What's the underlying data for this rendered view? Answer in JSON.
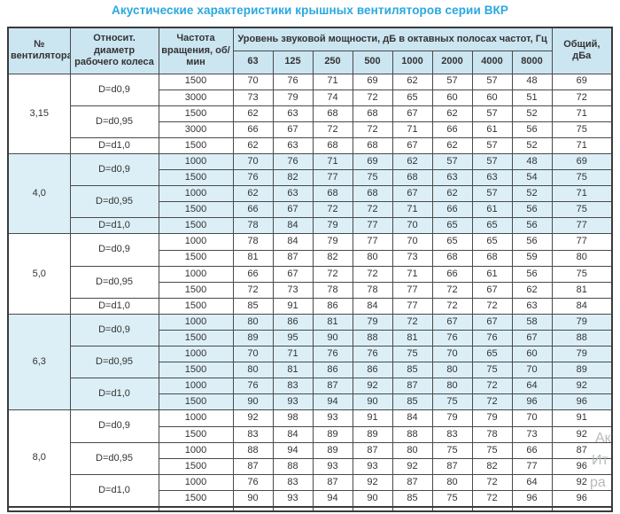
{
  "title": "Акустические характеристики крышных вентиляторов серии ВКР",
  "colors": {
    "title_accent": "#29a8df",
    "header_bg": "#cbe5f1",
    "shaded_group_bg": "#dceff7",
    "border": "#4a4a4a",
    "text": "#333333"
  },
  "watermark": {
    "fragments": [
      "Ак",
      "Ит",
      "ра"
    ]
  },
  "chart_data": {
    "type": "table",
    "title": "Акустические характеристики крышных вентиляторов серии ВКР",
    "header": {
      "fan": "№ вентилятора",
      "diameter": "Относит. диаметр рабочего колеса",
      "rpm": "Частота вращения, об/мин",
      "octave": "Уровень звуковой мощности, дБ в октавных полосах частот, Гц",
      "total": "Общий, дБа"
    },
    "frequencies": [
      "63",
      "125",
      "250",
      "500",
      "1000",
      "2000",
      "4000",
      "8000"
    ],
    "groups": [
      {
        "fan": "3,15",
        "shaded": false,
        "diameters": [
          {
            "label": "D=d0,9",
            "rows": [
              {
                "rpm": "1500",
                "levels": [
                  70,
                  76,
                  71,
                  69,
                  62,
                  57,
                  57,
                  48
                ],
                "total": 69
              },
              {
                "rpm": "3000",
                "levels": [
                  73,
                  79,
                  74,
                  72,
                  65,
                  60,
                  60,
                  51
                ],
                "total": 72
              }
            ]
          },
          {
            "label": "D=d0,95",
            "rows": [
              {
                "rpm": "1500",
                "levels": [
                  62,
                  63,
                  68,
                  68,
                  67,
                  62,
                  57,
                  52
                ],
                "total": 71
              },
              {
                "rpm": "3000",
                "levels": [
                  66,
                  67,
                  72,
                  72,
                  71,
                  66,
                  61,
                  56
                ],
                "total": 75
              }
            ]
          },
          {
            "label": "D=d1,0",
            "rows": [
              {
                "rpm": "1500",
                "levels": [
                  62,
                  63,
                  68,
                  68,
                  67,
                  62,
                  57,
                  52
                ],
                "total": 71
              }
            ]
          }
        ]
      },
      {
        "fan": "4,0",
        "shaded": true,
        "diameters": [
          {
            "label": "D=d0,9",
            "rows": [
              {
                "rpm": "1000",
                "levels": [
                  70,
                  76,
                  71,
                  69,
                  62,
                  57,
                  57,
                  48
                ],
                "total": 69
              },
              {
                "rpm": "1500",
                "levels": [
                  76,
                  82,
                  77,
                  75,
                  68,
                  63,
                  63,
                  54
                ],
                "total": 75
              }
            ]
          },
          {
            "label": "D=d0,95",
            "rows": [
              {
                "rpm": "1000",
                "levels": [
                  62,
                  63,
                  68,
                  68,
                  67,
                  62,
                  57,
                  52
                ],
                "total": 71
              },
              {
                "rpm": "1500",
                "levels": [
                  66,
                  67,
                  72,
                  72,
                  71,
                  66,
                  61,
                  56
                ],
                "total": 75
              }
            ]
          },
          {
            "label": "D=d1,0",
            "rows": [
              {
                "rpm": "1500",
                "levels": [
                  78,
                  84,
                  79,
                  77,
                  70,
                  65,
                  65,
                  56
                ],
                "total": 77
              }
            ]
          }
        ]
      },
      {
        "fan": "5,0",
        "shaded": false,
        "diameters": [
          {
            "label": "D=d0,9",
            "rows": [
              {
                "rpm": "1000",
                "levels": [
                  78,
                  84,
                  79,
                  77,
                  70,
                  65,
                  65,
                  56
                ],
                "total": 77
              },
              {
                "rpm": "1500",
                "levels": [
                  81,
                  87,
                  82,
                  80,
                  73,
                  68,
                  68,
                  59
                ],
                "total": 80
              }
            ]
          },
          {
            "label": "D=d0,95",
            "rows": [
              {
                "rpm": "1000",
                "levels": [
                  66,
                  67,
                  72,
                  72,
                  71,
                  66,
                  61,
                  56
                ],
                "total": 75
              },
              {
                "rpm": "1500",
                "levels": [
                  72,
                  73,
                  78,
                  78,
                  77,
                  72,
                  67,
                  62
                ],
                "total": 81
              }
            ]
          },
          {
            "label": "D=d1,0",
            "rows": [
              {
                "rpm": "1500",
                "levels": [
                  85,
                  91,
                  86,
                  84,
                  77,
                  72,
                  72,
                  63
                ],
                "total": 84
              }
            ]
          }
        ]
      },
      {
        "fan": "6,3",
        "shaded": true,
        "diameters": [
          {
            "label": "D=d0,9",
            "rows": [
              {
                "rpm": "1000",
                "levels": [
                  80,
                  86,
                  81,
                  79,
                  72,
                  67,
                  67,
                  58
                ],
                "total": 79
              },
              {
                "rpm": "1500",
                "levels": [
                  89,
                  95,
                  90,
                  88,
                  81,
                  76,
                  76,
                  67
                ],
                "total": 88
              }
            ]
          },
          {
            "label": "D=d0,95",
            "rows": [
              {
                "rpm": "1000",
                "levels": [
                  70,
                  71,
                  76,
                  76,
                  75,
                  70,
                  65,
                  60
                ],
                "total": 79
              },
              {
                "rpm": "1500",
                "levels": [
                  80,
                  81,
                  86,
                  86,
                  85,
                  80,
                  75,
                  70
                ],
                "total": 89
              }
            ]
          },
          {
            "label": "D=d1,0",
            "rows": [
              {
                "rpm": "1000",
                "levels": [
                  76,
                  83,
                  87,
                  92,
                  87,
                  80,
                  72,
                  64
                ],
                "total": 92
              },
              {
                "rpm": "1500",
                "levels": [
                  90,
                  93,
                  94,
                  90,
                  85,
                  75,
                  72,
                  96
                ],
                "total": 96
              }
            ]
          }
        ]
      },
      {
        "fan": "8,0",
        "shaded": false,
        "diameters": [
          {
            "label": "D=d0,9",
            "rows": [
              {
                "rpm": "1000",
                "levels": [
                  92,
                  98,
                  93,
                  91,
                  84,
                  79,
                  79,
                  70
                ],
                "total": 91
              },
              {
                "rpm": "1500",
                "levels": [
                  83,
                  84,
                  89,
                  89,
                  88,
                  83,
                  78,
                  73
                ],
                "total": 92
              }
            ]
          },
          {
            "label": "D=d0,95",
            "rows": [
              {
                "rpm": "1000",
                "levels": [
                  88,
                  94,
                  89,
                  87,
                  80,
                  75,
                  75,
                  66
                ],
                "total": 87
              },
              {
                "rpm": "1500",
                "levels": [
                  87,
                  88,
                  93,
                  93,
                  92,
                  87,
                  82,
                  77
                ],
                "total": 96
              }
            ]
          },
          {
            "label": "D=d1,0",
            "rows": [
              {
                "rpm": "1000",
                "levels": [
                  76,
                  83,
                  87,
                  92,
                  87,
                  80,
                  72,
                  64
                ],
                "total": 92
              },
              {
                "rpm": "1500",
                "levels": [
                  90,
                  93,
                  94,
                  90,
                  85,
                  75,
                  72,
                  96
                ],
                "total": 96
              }
            ]
          }
        ]
      }
    ]
  }
}
